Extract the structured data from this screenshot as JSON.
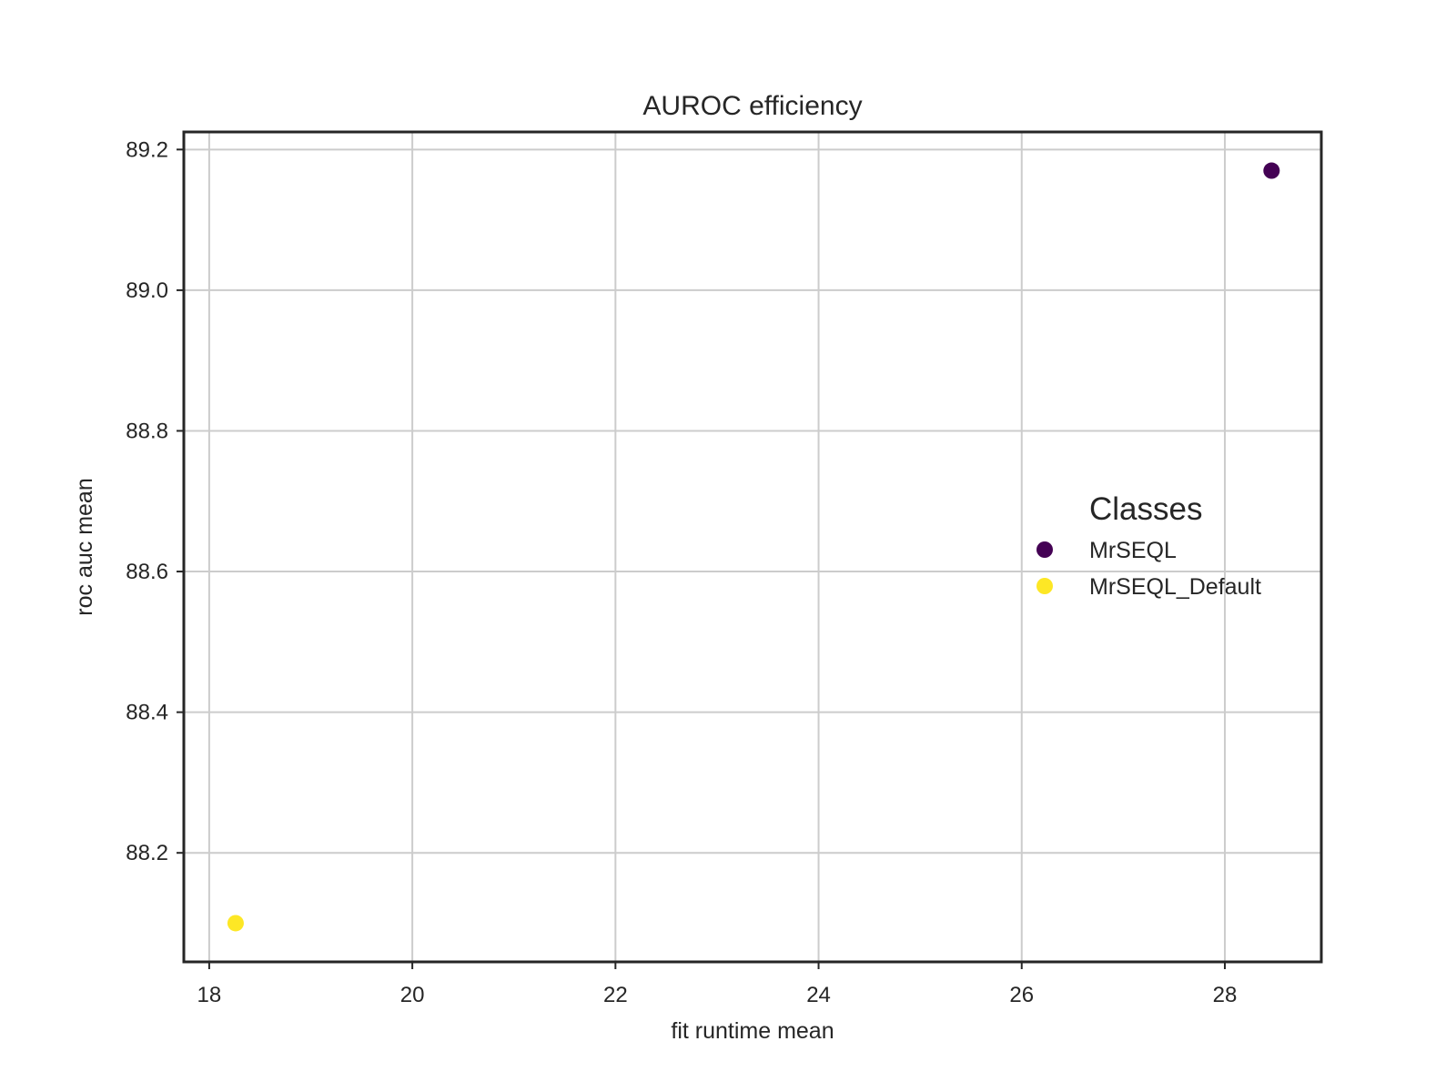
{
  "chart_data": {
    "type": "scatter",
    "title": "AUROC efficiency",
    "xlabel": "fit runtime mean",
    "ylabel": "roc auc mean",
    "xlim": [
      17.75,
      28.95
    ],
    "ylim": [
      88.045,
      89.225
    ],
    "xticks": [
      18,
      20,
      22,
      24,
      26,
      28
    ],
    "xtick_labels": [
      "18",
      "20",
      "22",
      "24",
      "26",
      "28"
    ],
    "yticks": [
      88.2,
      88.4,
      88.6,
      88.8,
      89.0,
      89.2
    ],
    "ytick_labels": [
      "88.2",
      "88.4",
      "88.6",
      "88.8",
      "89.0",
      "89.2"
    ],
    "grid": true,
    "legend": {
      "title": "Classes",
      "placement": "center-right"
    },
    "series": [
      {
        "name": "MrSEQL",
        "color": "#440154",
        "points": [
          {
            "x": 28.46,
            "y": 89.17
          }
        ]
      },
      {
        "name": "MrSEQL_Default",
        "color": "#fde725",
        "points": [
          {
            "x": 18.26,
            "y": 88.1
          }
        ]
      }
    ]
  }
}
